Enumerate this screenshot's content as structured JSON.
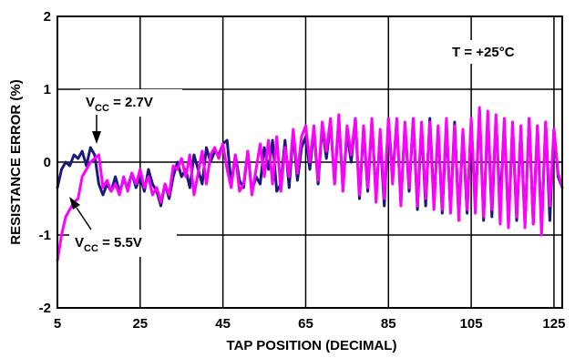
{
  "chart_data": {
    "type": "line",
    "title": "",
    "xlabel": "TAP POSITION (DECIMAL)",
    "ylabel": "RESISTANCE ERROR (%)",
    "xlim": [
      5,
      127
    ],
    "ylim": [
      -2,
      2
    ],
    "xticks": [
      "5",
      "25",
      "45",
      "65",
      "85",
      "105",
      "125"
    ],
    "yticks": [
      "2",
      "1",
      "0",
      "-1",
      "-2"
    ],
    "grid": true,
    "annotation_temp": "T = +25°C",
    "series": [
      {
        "name": "VCC = 2.7V",
        "label_main": "V",
        "label_sub": "CC",
        "label_rest": " = 2.7V",
        "color": "#1a1a7a",
        "x": [
          5,
          6,
          7,
          8,
          9,
          10,
          11,
          12,
          13,
          14,
          15,
          16,
          17,
          18,
          19,
          20,
          21,
          22,
          23,
          24,
          25,
          26,
          27,
          28,
          29,
          30,
          31,
          32,
          33,
          34,
          35,
          36,
          37,
          38,
          39,
          40,
          41,
          42,
          43,
          44,
          45,
          46,
          47,
          48,
          49,
          50,
          51,
          52,
          53,
          54,
          55,
          56,
          57,
          58,
          59,
          60,
          61,
          62,
          63,
          64,
          65,
          66,
          67,
          68,
          69,
          70,
          71,
          72,
          73,
          74,
          75,
          76,
          77,
          78,
          79,
          80,
          81,
          82,
          83,
          84,
          85,
          86,
          87,
          88,
          89,
          90,
          91,
          92,
          93,
          94,
          95,
          96,
          97,
          98,
          99,
          100,
          101,
          102,
          103,
          104,
          105,
          106,
          107,
          108,
          109,
          110,
          111,
          112,
          113,
          114,
          115,
          116,
          117,
          118,
          119,
          120,
          121,
          122,
          123,
          124,
          125,
          126,
          127
        ],
        "y": [
          -0.35,
          -0.1,
          0.0,
          -0.05,
          0.1,
          0.05,
          0.15,
          -0.05,
          0.2,
          0.1,
          -0.3,
          -0.45,
          -0.3,
          -0.4,
          -0.2,
          -0.4,
          -0.25,
          -0.35,
          -0.15,
          -0.35,
          -0.2,
          -0.4,
          -0.1,
          -0.3,
          -0.4,
          -0.6,
          -0.3,
          -0.5,
          -0.2,
          0.0,
          -0.2,
          -0.1,
          -0.35,
          0.1,
          -0.1,
          -0.3,
          0.2,
          0.0,
          0.15,
          0.1,
          0.25,
          0.3,
          -0.3,
          0.1,
          -0.25,
          -0.35,
          0.15,
          -0.4,
          -0.2,
          -0.3,
          0.2,
          -0.1,
          0.3,
          -0.4,
          -0.3,
          0.3,
          -0.35,
          0.4,
          -0.25,
          0.2,
          0.35,
          -0.1,
          0.45,
          -0.3,
          0.5,
          0.05,
          0.55,
          -0.3,
          0.6,
          -0.35,
          0.4,
          0.0,
          0.6,
          -0.5,
          0.45,
          -0.4,
          0.55,
          -0.45,
          0.35,
          -0.6,
          0.6,
          -0.2,
          0.55,
          -0.55,
          0.5,
          -0.4,
          0.6,
          -0.65,
          0.5,
          -0.6,
          0.6,
          -0.55,
          0.45,
          -0.7,
          0.5,
          -0.65,
          0.55,
          -0.75,
          0.4,
          -0.7,
          0.55,
          -0.6,
          0.7,
          -0.8,
          0.65,
          -0.75,
          0.6,
          -0.6,
          0.55,
          -0.85,
          0.5,
          -0.8,
          0.45,
          -0.85,
          0.6,
          -0.85,
          0.5,
          -0.9,
          0.55,
          -0.8,
          0.45,
          -0.2,
          -0.35
        ]
      },
      {
        "name": "VCC = 5.5V",
        "label_main": "V",
        "label_sub": "CC",
        "label_rest": " = 5.5V",
        "color": "#ff00ff",
        "x": [
          5,
          6,
          7,
          8,
          9,
          10,
          11,
          12,
          13,
          14,
          15,
          16,
          17,
          18,
          19,
          20,
          21,
          22,
          23,
          24,
          25,
          26,
          27,
          28,
          29,
          30,
          31,
          32,
          33,
          34,
          35,
          36,
          37,
          38,
          39,
          40,
          41,
          42,
          43,
          44,
          45,
          46,
          47,
          48,
          49,
          50,
          51,
          52,
          53,
          54,
          55,
          56,
          57,
          58,
          59,
          60,
          61,
          62,
          63,
          64,
          65,
          66,
          67,
          68,
          69,
          70,
          71,
          72,
          73,
          74,
          75,
          76,
          77,
          78,
          79,
          80,
          81,
          82,
          83,
          84,
          85,
          86,
          87,
          88,
          89,
          90,
          91,
          92,
          93,
          94,
          95,
          96,
          97,
          98,
          99,
          100,
          101,
          102,
          103,
          104,
          105,
          106,
          107,
          108,
          109,
          110,
          111,
          112,
          113,
          114,
          115,
          116,
          117,
          118,
          119,
          120,
          121,
          122,
          123,
          124,
          125,
          126,
          127
        ],
        "y": [
          -1.35,
          -1.0,
          -0.75,
          -0.65,
          -0.55,
          -0.5,
          -0.2,
          -0.1,
          0.0,
          0.05,
          0.1,
          -0.35,
          -0.25,
          -0.4,
          -0.3,
          -0.45,
          -0.2,
          -0.4,
          -0.15,
          -0.3,
          -0.1,
          -0.35,
          -0.2,
          -0.45,
          -0.35,
          -0.55,
          -0.3,
          -0.45,
          -0.05,
          -0.1,
          0.05,
          -0.2,
          0.1,
          -0.45,
          -0.15,
          0.15,
          -0.3,
          0.1,
          0.2,
          0.05,
          0.25,
          -0.1,
          -0.35,
          0.1,
          -0.4,
          -0.3,
          0.15,
          -0.45,
          -0.1,
          0.25,
          -0.2,
          0.3,
          -0.3,
          0.35,
          -0.4,
          0.2,
          -0.2,
          0.45,
          -0.15,
          0.35,
          0.5,
          0.0,
          0.5,
          -0.25,
          0.55,
          0.15,
          0.6,
          -0.3,
          0.65,
          -0.4,
          0.5,
          0.1,
          0.6,
          -0.45,
          0.5,
          -0.35,
          0.6,
          -0.55,
          0.45,
          -0.5,
          0.6,
          -0.3,
          0.6,
          -0.6,
          0.55,
          -0.35,
          0.6,
          -0.6,
          0.55,
          -0.5,
          0.55,
          -0.65,
          0.5,
          -0.65,
          0.6,
          -0.7,
          0.5,
          -0.8,
          0.45,
          -0.65,
          0.6,
          -0.7,
          0.75,
          -0.75,
          0.7,
          -0.65,
          0.65,
          -0.85,
          0.6,
          -0.9,
          0.55,
          -0.75,
          0.5,
          -0.9,
          0.6,
          -0.85,
          0.5,
          -1.0,
          0.55,
          -0.6,
          0.45,
          -0.15,
          -0.35
        ]
      }
    ]
  }
}
